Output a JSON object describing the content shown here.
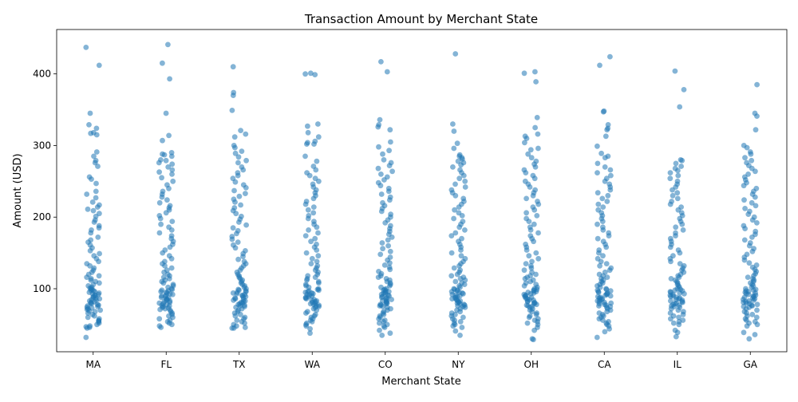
{
  "chart_data": {
    "type": "scatter",
    "subtype": "strip-plot",
    "title": "Transaction Amount by Merchant State",
    "xlabel": "Merchant State",
    "ylabel": "Amount (USD)",
    "categories": [
      "MA",
      "FL",
      "TX",
      "WA",
      "CO",
      "NY",
      "OH",
      "CA",
      "IL",
      "GA"
    ],
    "yticks": [
      100,
      200,
      300,
      400
    ],
    "ylim": [
      12,
      462
    ],
    "grid": false,
    "legend": "none",
    "marker_color": "#1f77b4",
    "marker_opacity": 0.55,
    "series": [
      {
        "category": "MA",
        "values": [
          437,
          412,
          345,
          329,
          324,
          318,
          317,
          315,
          291,
          285,
          279,
          276,
          271,
          256,
          253,
          247,
          236,
          232,
          227,
          221,
          217,
          214,
          211,
          209,
          205,
          201,
          196,
          193,
          188,
          185,
          182,
          178,
          172,
          168,
          165,
          161,
          157,
          153,
          149,
          146,
          142,
          138,
          135,
          132,
          129,
          126,
          123,
          120,
          118,
          116,
          114,
          112,
          110,
          108,
          106,
          104,
          102,
          101,
          100,
          99,
          98,
          97,
          96,
          95,
          94,
          93,
          92,
          91,
          90,
          89,
          88,
          87,
          86,
          85,
          84,
          83,
          82,
          81,
          80,
          79,
          78,
          77,
          76,
          75,
          74,
          73,
          72,
          71,
          70,
          69,
          68,
          66,
          64,
          62,
          60,
          58,
          56,
          55,
          54,
          52,
          50,
          48,
          47,
          46,
          45,
          32
        ]
      },
      {
        "category": "FL",
        "values": [
          441,
          415,
          393,
          345,
          314,
          307,
          290,
          288,
          287,
          285,
          280,
          279,
          276,
          274,
          270,
          266,
          263,
          260,
          255,
          250,
          245,
          240,
          236,
          232,
          228,
          224,
          220,
          216,
          213,
          210,
          206,
          202,
          198,
          194,
          190,
          186,
          182,
          178,
          174,
          170,
          166,
          162,
          158,
          154,
          150,
          146,
          142,
          138,
          135,
          132,
          129,
          126,
          123,
          120,
          118,
          116,
          114,
          112,
          110,
          108,
          106,
          104,
          102,
          100,
          99,
          98,
          97,
          96,
          95,
          94,
          93,
          92,
          91,
          90,
          89,
          88,
          87,
          86,
          85,
          84,
          83,
          82,
          81,
          80,
          79,
          78,
          77,
          76,
          75,
          74,
          73,
          72,
          71,
          70,
          68,
          66,
          64,
          62,
          60,
          58,
          56,
          54,
          52,
          50,
          48,
          46
        ]
      },
      {
        "category": "TX",
        "values": [
          410,
          374,
          370,
          349,
          321,
          316,
          312,
          300,
          297,
          292,
          289,
          284,
          279,
          276,
          270,
          266,
          262,
          258,
          254,
          249,
          245,
          241,
          237,
          233,
          229,
          225,
          221,
          217,
          213,
          209,
          205,
          201,
          197,
          193,
          189,
          185,
          181,
          177,
          173,
          169,
          165,
          161,
          157,
          153,
          149,
          145,
          141,
          138,
          135,
          132,
          129,
          126,
          123,
          120,
          118,
          116,
          114,
          112,
          110,
          108,
          106,
          104,
          102,
          100,
          99,
          98,
          97,
          96,
          95,
          94,
          93,
          92,
          91,
          90,
          89,
          88,
          87,
          86,
          85,
          84,
          83,
          82,
          81,
          80,
          79,
          78,
          77,
          76,
          75,
          74,
          72,
          70,
          68,
          66,
          64,
          62,
          60,
          58,
          56,
          54,
          52,
          50,
          48,
          46,
          45,
          45
        ]
      },
      {
        "category": "WA",
        "values": [
          401,
          400,
          399,
          330,
          327,
          318,
          312,
          306,
          304,
          302,
          302,
          285,
          278,
          271,
          266,
          262,
          258,
          254,
          250,
          246,
          242,
          238,
          234,
          230,
          226,
          222,
          218,
          214,
          210,
          206,
          202,
          198,
          194,
          190,
          186,
          182,
          178,
          174,
          170,
          166,
          162,
          158,
          154,
          150,
          146,
          142,
          138,
          135,
          132,
          129,
          126,
          123,
          120,
          118,
          116,
          114,
          112,
          110,
          108,
          106,
          104,
          102,
          100,
          99,
          98,
          97,
          96,
          95,
          94,
          93,
          92,
          91,
          90,
          89,
          88,
          87,
          86,
          85,
          84,
          83,
          82,
          81,
          80,
          79,
          78,
          77,
          76,
          75,
          74,
          72,
          70,
          68,
          66,
          64,
          62,
          60,
          58,
          56,
          54,
          52,
          50,
          48,
          44,
          38
        ]
      },
      {
        "category": "CO",
        "values": [
          417,
          403,
          336,
          329,
          326,
          322,
          305,
          298,
          293,
          288,
          280,
          276,
          272,
          268,
          264,
          260,
          256,
          252,
          248,
          244,
          240,
          236,
          232,
          228,
          224,
          220,
          216,
          212,
          208,
          204,
          200,
          196,
          192,
          188,
          184,
          180,
          176,
          172,
          168,
          164,
          160,
          156,
          152,
          148,
          144,
          140,
          136,
          133,
          130,
          127,
          124,
          121,
          118,
          116,
          114,
          112,
          110,
          108,
          106,
          104,
          102,
          100,
          99,
          98,
          97,
          96,
          95,
          94,
          93,
          92,
          91,
          90,
          89,
          88,
          87,
          86,
          85,
          84,
          83,
          82,
          81,
          80,
          79,
          78,
          77,
          76,
          75,
          74,
          72,
          70,
          68,
          66,
          64,
          62,
          60,
          58,
          56,
          54,
          52,
          50,
          48,
          46,
          42,
          38,
          35
        ]
      },
      {
        "category": "NY",
        "values": [
          428,
          330,
          320,
          303,
          296,
          287,
          285,
          283,
          281,
          278,
          276,
          273,
          270,
          266,
          262,
          258,
          254,
          250,
          246,
          242,
          238,
          234,
          230,
          226,
          222,
          218,
          214,
          210,
          206,
          202,
          198,
          194,
          190,
          186,
          182,
          178,
          174,
          170,
          166,
          162,
          158,
          154,
          150,
          146,
          142,
          138,
          135,
          132,
          129,
          126,
          123,
          120,
          118,
          116,
          114,
          112,
          110,
          108,
          106,
          104,
          102,
          100,
          99,
          98,
          97,
          96,
          95,
          94,
          93,
          92,
          91,
          90,
          89,
          88,
          87,
          86,
          85,
          84,
          83,
          82,
          81,
          80,
          79,
          78,
          77,
          76,
          75,
          74,
          72,
          70,
          68,
          66,
          64,
          62,
          60,
          58,
          56,
          54,
          52,
          50,
          48,
          46,
          41,
          35
        ]
      },
      {
        "category": "OH",
        "values": [
          403,
          401,
          389,
          339,
          325,
          316,
          313,
          310,
          304,
          296,
          294,
          288,
          283,
          278,
          274,
          270,
          266,
          262,
          258,
          254,
          250,
          246,
          242,
          238,
          234,
          230,
          226,
          222,
          218,
          214,
          210,
          206,
          202,
          198,
          194,
          190,
          186,
          182,
          178,
          174,
          170,
          166,
          162,
          158,
          154,
          150,
          146,
          142,
          138,
          135,
          132,
          129,
          126,
          123,
          120,
          118,
          116,
          114,
          112,
          110,
          108,
          106,
          104,
          102,
          100,
          99,
          98,
          97,
          96,
          95,
          94,
          93,
          92,
          91,
          90,
          89,
          88,
          87,
          86,
          85,
          84,
          83,
          82,
          81,
          80,
          79,
          78,
          77,
          76,
          75,
          74,
          72,
          70,
          68,
          66,
          64,
          62,
          60,
          58,
          56,
          54,
          52,
          50,
          46,
          42,
          30,
          29
        ]
      },
      {
        "category": "CA",
        "values": [
          424,
          412,
          348,
          347,
          329,
          324,
          322,
          313,
          299,
          289,
          285,
          283,
          275,
          270,
          266,
          262,
          258,
          254,
          250,
          246,
          242,
          238,
          234,
          230,
          226,
          222,
          218,
          214,
          210,
          206,
          202,
          198,
          194,
          190,
          186,
          182,
          178,
          174,
          170,
          166,
          162,
          158,
          154,
          150,
          146,
          142,
          138,
          135,
          132,
          129,
          126,
          123,
          120,
          118,
          116,
          114,
          112,
          110,
          108,
          106,
          104,
          102,
          100,
          99,
          98,
          97,
          96,
          95,
          94,
          93,
          92,
          91,
          90,
          89,
          88,
          87,
          86,
          85,
          84,
          83,
          82,
          81,
          80,
          79,
          78,
          77,
          76,
          75,
          74,
          72,
          70,
          68,
          66,
          64,
          62,
          60,
          58,
          56,
          54,
          52,
          50,
          48,
          44,
          40,
          32
        ]
      },
      {
        "category": "IL",
        "values": [
          404,
          378,
          354,
          280,
          279,
          275,
          271,
          268,
          265,
          262,
          258,
          254,
          250,
          246,
          242,
          238,
          234,
          230,
          226,
          222,
          218,
          214,
          210,
          206,
          202,
          198,
          194,
          190,
          186,
          182,
          178,
          174,
          170,
          166,
          162,
          158,
          154,
          150,
          146,
          142,
          138,
          135,
          132,
          129,
          126,
          123,
          120,
          118,
          116,
          114,
          112,
          110,
          108,
          106,
          104,
          102,
          100,
          99,
          98,
          97,
          96,
          95,
          94,
          93,
          92,
          91,
          90,
          89,
          88,
          87,
          86,
          85,
          84,
          83,
          82,
          81,
          80,
          79,
          78,
          77,
          76,
          75,
          74,
          72,
          70,
          68,
          66,
          64,
          62,
          60,
          58,
          56,
          54,
          52,
          50,
          42,
          39,
          33
        ]
      },
      {
        "category": "GA",
        "values": [
          385,
          345,
          341,
          322,
          300,
          297,
          291,
          288,
          283,
          279,
          276,
          272,
          268,
          264,
          260,
          256,
          252,
          248,
          244,
          240,
          236,
          232,
          228,
          224,
          220,
          216,
          212,
          208,
          204,
          200,
          196,
          192,
          188,
          184,
          180,
          176,
          172,
          168,
          164,
          160,
          156,
          152,
          148,
          144,
          140,
          136,
          133,
          130,
          127,
          124,
          121,
          118,
          116,
          114,
          112,
          110,
          108,
          106,
          104,
          102,
          100,
          99,
          98,
          97,
          96,
          95,
          94,
          93,
          92,
          91,
          90,
          89,
          88,
          87,
          86,
          85,
          84,
          83,
          82,
          81,
          80,
          79,
          78,
          77,
          76,
          75,
          74,
          72,
          70,
          68,
          66,
          64,
          62,
          60,
          58,
          56,
          54,
          52,
          50,
          48,
          39,
          36,
          30
        ]
      }
    ]
  }
}
